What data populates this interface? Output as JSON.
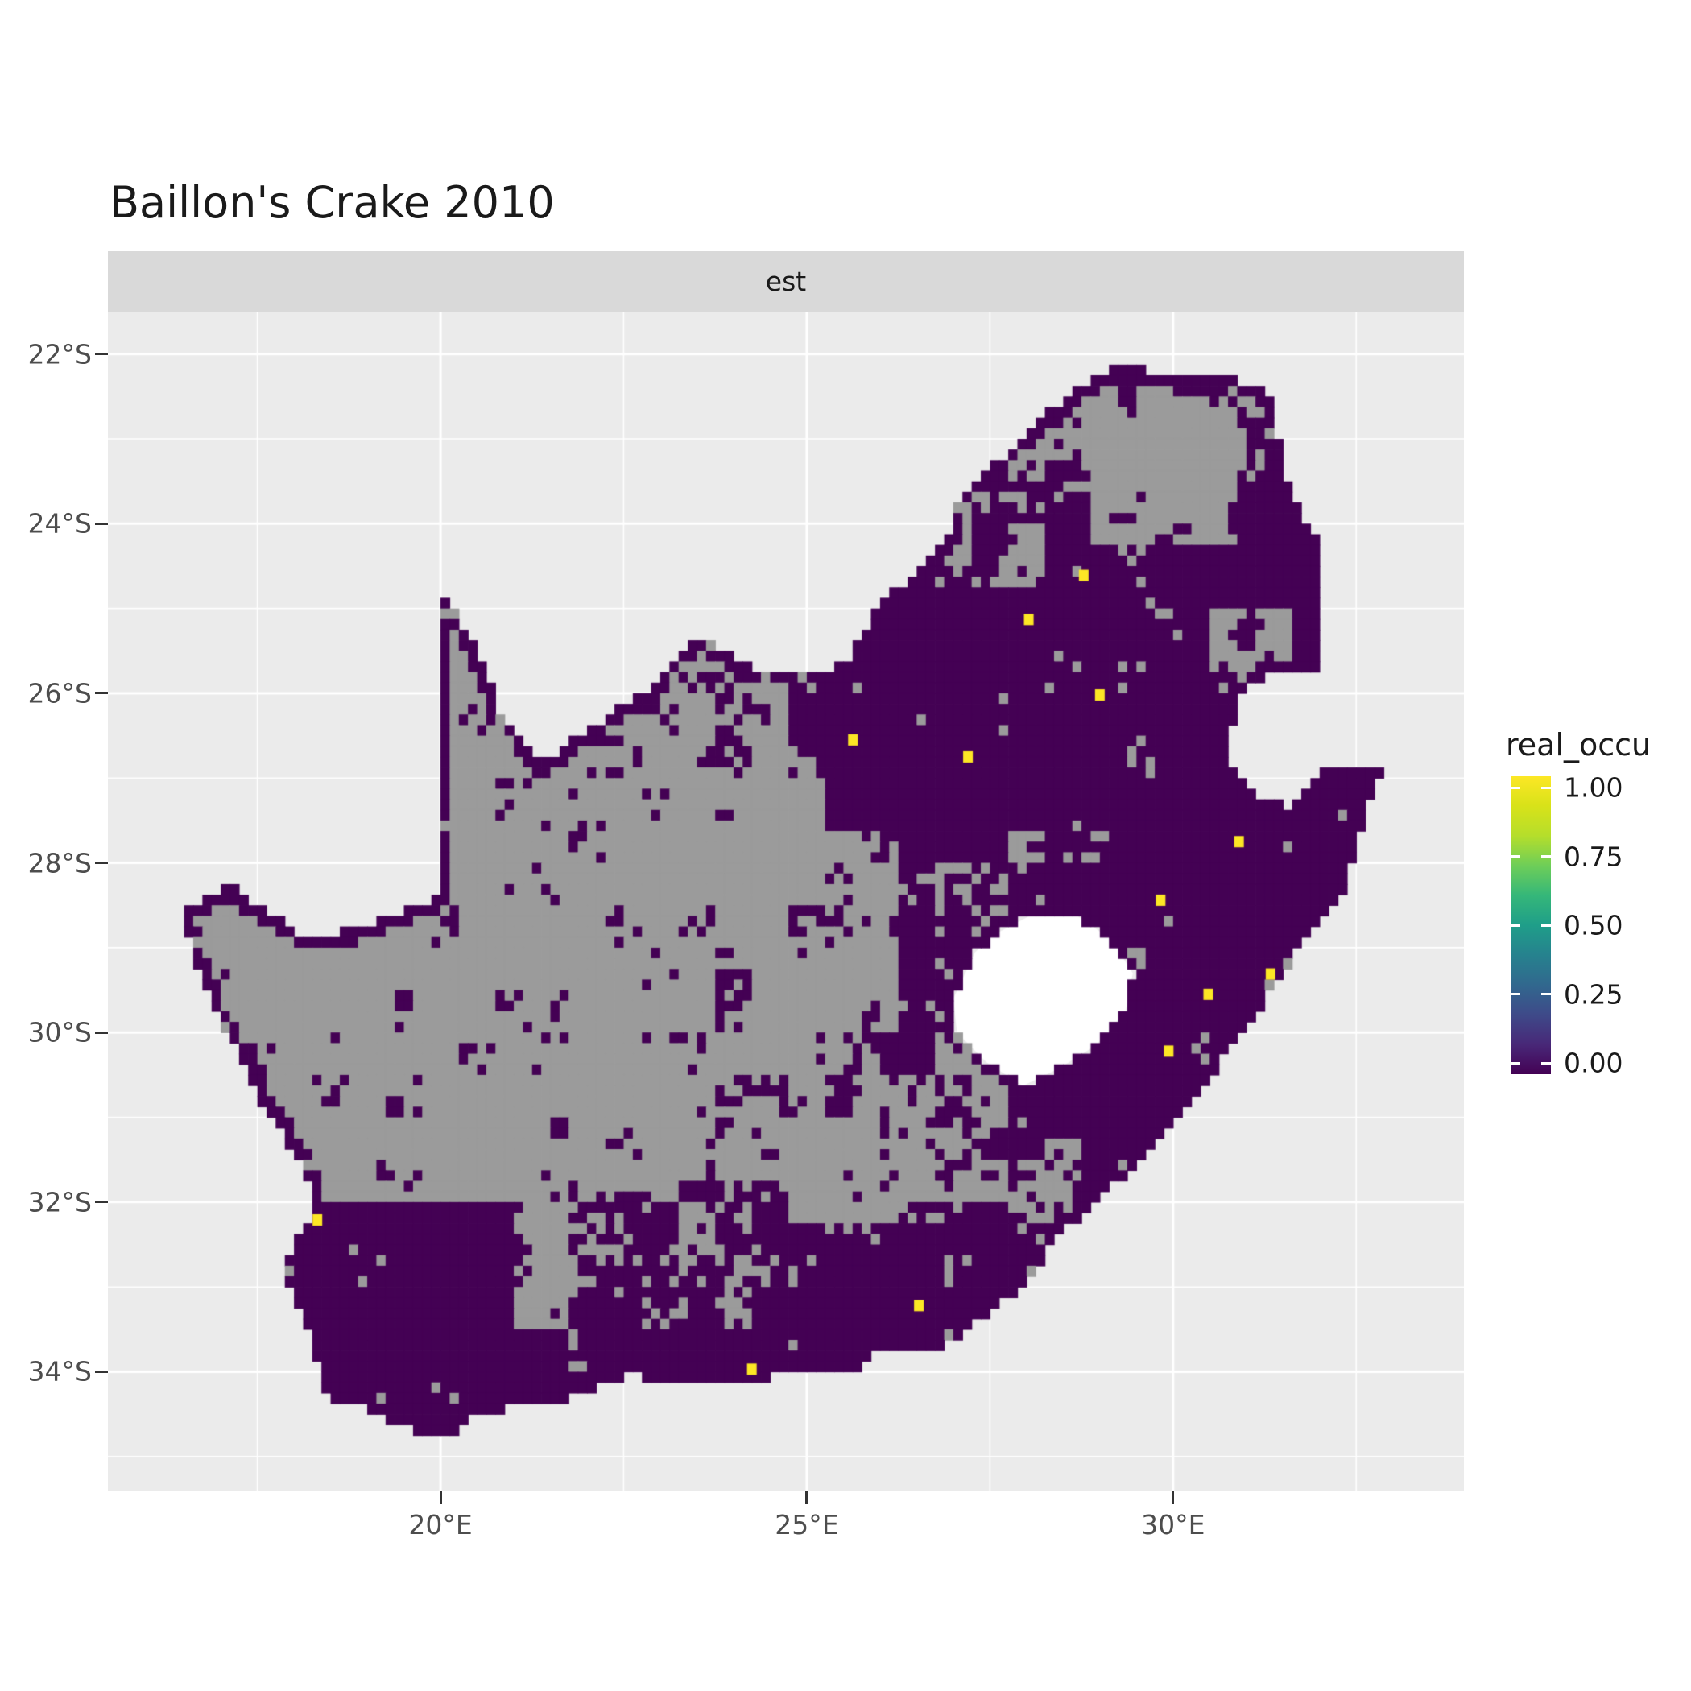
{
  "title": "Baillon's Crake 2010",
  "facet_label": "est",
  "legend": {
    "title": "real_occu",
    "labels": [
      "1.00",
      "0.75",
      "0.50",
      "0.25",
      "0.00"
    ],
    "gradient_stops": [
      "#440154",
      "#482878",
      "#3e4a89",
      "#31688e",
      "#26828e",
      "#1f9e89",
      "#35b779",
      "#6ece58",
      "#b5de2b",
      "#d8e219",
      "#fde725"
    ]
  },
  "axes": {
    "x_ticks": [
      {
        "label": "20°E",
        "lon": 20
      },
      {
        "label": "25°E",
        "lon": 25
      },
      {
        "label": "30°E",
        "lon": 30
      }
    ],
    "x_minor": [
      17.5,
      22.5,
      27.5,
      32.5
    ],
    "y_ticks": [
      {
        "label": "22°S",
        "lat": -22
      },
      {
        "label": "24°S",
        "lat": -24
      },
      {
        "label": "26°S",
        "lat": -26
      },
      {
        "label": "28°S",
        "lat": -28
      },
      {
        "label": "30°S",
        "lat": -30
      },
      {
        "label": "32°S",
        "lat": -32
      },
      {
        "label": "34°S",
        "lat": -34
      }
    ],
    "y_minor": [
      -23,
      -25,
      -27,
      -29,
      -31,
      -33,
      -35
    ],
    "lon_range": [
      15.46,
      33.97
    ],
    "lat_range": [
      -35.41,
      -21.5
    ]
  },
  "colors": {
    "panel_bg": "#ebebeb",
    "strip_bg": "#d9d9d9",
    "grid": "#ffffff",
    "cell_zero": "#440154",
    "cell_one": "#fde725",
    "cell_na": "#9b9b9b",
    "hole_fill": "#ffffff",
    "axis_text": "#4d4d4d",
    "tick_mark": "#333333",
    "title_text": "#1a1a1a"
  },
  "chart_data": {
    "type": "heatmap",
    "title": "Baillon's Crake 2010",
    "facet": "est",
    "fill_variable": "real_occu",
    "fill_domain": [
      0,
      1
    ],
    "legend_tick_values": [
      1.0,
      0.75,
      0.5,
      0.25,
      0.0
    ],
    "palette": "viridis",
    "region": "South Africa",
    "cell_size_deg": 0.125,
    "occupied_value": 1.0,
    "background_cell_value": 0.0,
    "occupied_points": [
      [
        28.78,
        -24.61
      ],
      [
        28.03,
        -25.13
      ],
      [
        29.0,
        -26.02
      ],
      [
        25.63,
        -26.55
      ],
      [
        27.2,
        -26.75
      ],
      [
        30.9,
        -27.75
      ],
      [
        29.83,
        -28.44
      ],
      [
        31.33,
        -29.31
      ],
      [
        30.48,
        -29.55
      ],
      [
        29.94,
        -30.22
      ],
      [
        18.32,
        -32.21
      ],
      [
        26.53,
        -33.22
      ],
      [
        24.25,
        -33.97
      ]
    ],
    "outline": [
      [
        19.98,
        -24.77
      ],
      [
        20.35,
        -25.25
      ],
      [
        20.65,
        -25.85
      ],
      [
        20.85,
        -26.3
      ],
      [
        21.4,
        -26.83
      ],
      [
        22.05,
        -26.4
      ],
      [
        22.85,
        -25.95
      ],
      [
        23.45,
        -25.3
      ],
      [
        24.1,
        -25.65
      ],
      [
        24.9,
        -25.8
      ],
      [
        25.55,
        -25.65
      ],
      [
        25.65,
        -25.45
      ],
      [
        26.0,
        -24.9
      ],
      [
        26.5,
        -24.6
      ],
      [
        26.88,
        -24.25
      ],
      [
        27.1,
        -23.65
      ],
      [
        27.65,
        -23.22
      ],
      [
        28.2,
        -22.75
      ],
      [
        29.05,
        -22.2
      ],
      [
        29.45,
        -22.15
      ],
      [
        30.1,
        -22.3
      ],
      [
        30.85,
        -22.3
      ],
      [
        31.3,
        -22.4
      ],
      [
        31.55,
        -23.5
      ],
      [
        31.98,
        -24.25
      ],
      [
        32.03,
        -25.3
      ],
      [
        32.05,
        -25.6
      ],
      [
        31.9,
        -25.78
      ],
      [
        31.3,
        -25.75
      ],
      [
        30.82,
        -26.1
      ],
      [
        30.8,
        -26.8
      ],
      [
        31.15,
        -27.2
      ],
      [
        31.6,
        -27.35
      ],
      [
        32.1,
        -26.9
      ],
      [
        32.89,
        -26.87
      ],
      [
        32.55,
        -27.6
      ],
      [
        32.35,
        -28.3
      ],
      [
        31.75,
        -28.95
      ],
      [
        31.05,
        -29.9
      ],
      [
        30.3,
        -30.75
      ],
      [
        29.4,
        -31.65
      ],
      [
        28.55,
        -32.3
      ],
      [
        27.85,
        -33.05
      ],
      [
        26.9,
        -33.7
      ],
      [
        26.0,
        -33.75
      ],
      [
        25.65,
        -34.0
      ],
      [
        25.0,
        -34.0
      ],
      [
        24.2,
        -34.1
      ],
      [
        23.3,
        -34.1
      ],
      [
        22.55,
        -34.05
      ],
      [
        22.15,
        -34.2
      ],
      [
        21.5,
        -34.37
      ],
      [
        20.5,
        -34.48
      ],
      [
        20.0,
        -34.82
      ],
      [
        19.35,
        -34.6
      ],
      [
        18.85,
        -34.4
      ],
      [
        18.45,
        -34.3
      ],
      [
        18.35,
        -33.9
      ],
      [
        18.0,
        -33.1
      ],
      [
        17.85,
        -32.75
      ],
      [
        18.3,
        -32.05
      ],
      [
        18.15,
        -31.6
      ],
      [
        17.55,
        -30.8
      ],
      [
        17.0,
        -29.85
      ],
      [
        16.7,
        -29.25
      ],
      [
        16.45,
        -28.6
      ],
      [
        17.1,
        -28.25
      ],
      [
        17.6,
        -28.55
      ],
      [
        18.2,
        -28.9
      ],
      [
        19.0,
        -28.75
      ],
      [
        19.6,
        -28.5
      ],
      [
        19.98,
        -28.42
      ]
    ],
    "lesotho_hole": [
      [
        27.0,
        -29.6
      ],
      [
        27.3,
        -29.05
      ],
      [
        27.55,
        -28.85
      ],
      [
        28.05,
        -28.62
      ],
      [
        28.65,
        -28.6
      ],
      [
        29.15,
        -28.9
      ],
      [
        29.45,
        -29.3
      ],
      [
        29.35,
        -29.75
      ],
      [
        28.95,
        -30.15
      ],
      [
        28.45,
        -30.42
      ],
      [
        27.95,
        -30.63
      ],
      [
        27.45,
        -30.35
      ],
      [
        27.05,
        -30.0
      ]
    ],
    "purple_zones": [
      [
        25.3,
        32.2,
        -27.6,
        -23.9,
        0.93
      ],
      [
        28.3,
        33.0,
        -31.3,
        -26.8,
        0.88
      ],
      [
        26.0,
        30.3,
        -33.3,
        -30.0,
        0.55
      ],
      [
        24.3,
        28.6,
        -34.3,
        -32.2,
        0.82
      ],
      [
        17.8,
        21.0,
        -35.0,
        -32.0,
        0.9
      ],
      [
        21.0,
        24.8,
        -34.9,
        -33.5,
        0.88
      ],
      [
        26.2,
        29.5,
        -30.3,
        -27.5,
        0.6
      ],
      [
        27.0,
        31.6,
        -24.3,
        -22.0,
        0.55
      ],
      [
        24.8,
        27.6,
        -26.6,
        -25.1,
        0.75
      ],
      [
        22.0,
        25.3,
        -27.0,
        -25.3,
        0.35
      ],
      [
        23.8,
        26.3,
        -31.2,
        -27.3,
        0.3
      ],
      [
        21.8,
        24.8,
        -33.5,
        -31.8,
        0.5
      ],
      [
        28.6,
        31.2,
        -32.6,
        -30.8,
        0.8
      ]
    ],
    "gray_zones": [
      [
        28.9,
        30.9,
        -24.2,
        -22.6,
        0.3
      ],
      [
        26.7,
        28.2,
        -24.7,
        -23.6,
        0.45
      ],
      [
        30.5,
        31.6,
        -26.0,
        -25.0,
        0.4
      ],
      [
        27.8,
        29.2,
        -23.2,
        -22.3,
        0.5
      ],
      [
        29.5,
        30.6,
        -23.2,
        -22.4,
        0.35
      ]
    ],
    "base_est_density": 0.15,
    "border_density": 0.8,
    "border_width_deg": 0.16
  }
}
